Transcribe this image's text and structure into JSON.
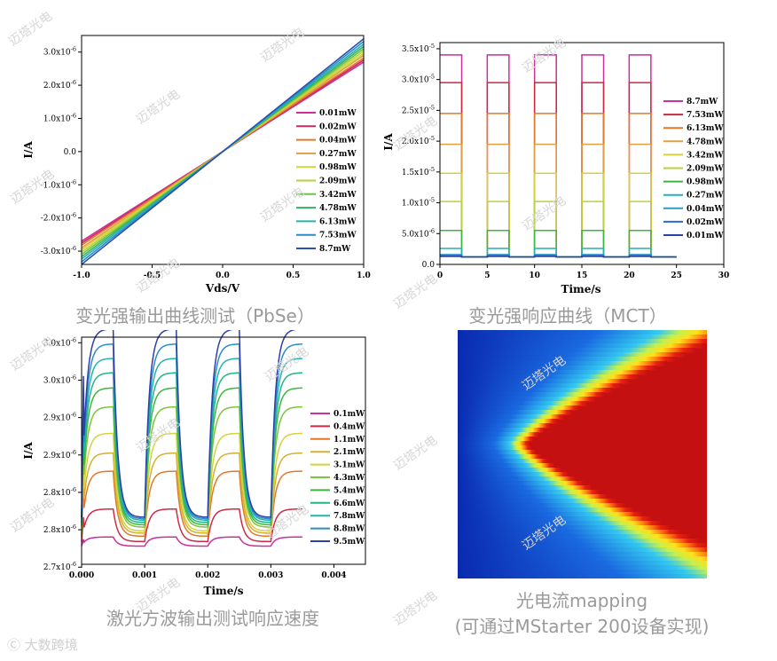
{
  "charts": [
    {
      "type": "line",
      "ylabel": "I/A",
      "xlabel": "Vds/V",
      "xlim": [
        -1.0,
        1.0
      ],
      "ylim": [
        -3.4e-06,
        3.5e-06
      ],
      "xticks": [
        "-1.0",
        "-0.5",
        "0.0",
        "0.5",
        "1.0"
      ],
      "yticks": [
        {
          "base": "3.0x10",
          "exp": "-6",
          "v": 3e-06
        },
        {
          "base": "2.0x10",
          "exp": "-6",
          "v": 2e-06
        },
        {
          "base": "1.0x10",
          "exp": "-6",
          "v": 1e-06
        },
        {
          "base": "0.0",
          "exp": "",
          "v": 0
        },
        {
          "base": "-1.0x10",
          "exp": "-6",
          "v": -1e-06
        },
        {
          "base": "-2.0x10",
          "exp": "-6",
          "v": -2e-06
        },
        {
          "base": "-3.0x10",
          "exp": "-6",
          "v": -3e-06
        }
      ],
      "legend": [
        "0.01mW",
        "0.02mW",
        "0.04mW",
        "0.27mW",
        "0.98mW",
        "2.09mW",
        "3.42mW",
        "4.78mW",
        "6.13mW",
        "7.53mW",
        "8.7mW"
      ],
      "legend_colors": [
        "#cc2f9c",
        "#cc2a63",
        "#e07a28",
        "#e0a042",
        "#d6d23c",
        "#b8d23a",
        "#6cc43e",
        "#34b06a",
        "#23b4b0",
        "#2a8cc8",
        "#2d4fb0"
      ],
      "slopes": [
        2.7e-06,
        2.76e-06,
        2.82e-06,
        2.9e-06,
        2.96e-06,
        3.03e-06,
        3.1e-06,
        3.17e-06,
        3.24e-06,
        3.32e-06,
        3.4e-06
      ],
      "caption": "变光强输出曲线测试（PbSe）"
    },
    {
      "type": "line",
      "ylabel": "I/A",
      "xlabel": "Time/s",
      "xlim": [
        0,
        30
      ],
      "ylim": [
        0,
        3.6e-05
      ],
      "xticks": [
        "0",
        "5",
        "10",
        "15",
        "20",
        "25",
        "30"
      ],
      "yticks": [
        {
          "base": "3.5x10",
          "exp": "-5",
          "v": 3.5e-05
        },
        {
          "base": "3.0x10",
          "exp": "-5",
          "v": 3e-05
        },
        {
          "base": "2.5x10",
          "exp": "-5",
          "v": 2.5e-05
        },
        {
          "base": "2.0x10",
          "exp": "-5",
          "v": 2e-05
        },
        {
          "base": "1.5x10",
          "exp": "-5",
          "v": 1.5e-05
        },
        {
          "base": "1.0x10",
          "exp": "-5",
          "v": 1e-05
        },
        {
          "base": "5.0x10",
          "exp": "-6",
          "v": 5e-06
        },
        {
          "base": "0.0",
          "exp": "",
          "v": 0
        }
      ],
      "legend": [
        "8.7mW",
        "7.53mW",
        "6.13mW",
        "4.78mW",
        "3.42mW",
        "2.09mW",
        "0.98mW",
        "0.27mW",
        "0.04mW",
        "0.02mW",
        "0.01mW"
      ],
      "legend_colors": [
        "#cc2f9c",
        "#cc2a45",
        "#e07a28",
        "#e0a042",
        "#d6d23c",
        "#b8d23a",
        "#3cb83c",
        "#23b4b0",
        "#2a9ad0",
        "#2a6ac8",
        "#2d3fa8"
      ],
      "on_levels": [
        3.4e-05,
        2.95e-05,
        2.45e-05,
        1.95e-05,
        1.48e-05,
        1.02e-05,
        5.5e-06,
        2.6e-06,
        1.6e-06,
        1.4e-06,
        1.3e-06
      ],
      "baseline": 1.2e-06,
      "pulse_on": [
        [
          0,
          2.3
        ],
        [
          5,
          7.3
        ],
        [
          10,
          12.3
        ],
        [
          15,
          17.3
        ],
        [
          20,
          22.3
        ]
      ],
      "t_end": 25,
      "caption": "变光强响应曲线（MCT）"
    },
    {
      "type": "line",
      "ylabel": "I/A",
      "xlabel": "Time/s",
      "xlim": [
        0.0,
        0.0045
      ],
      "ylim": [
        2.7e-06,
        3e-06
      ],
      "xticks": [
        "0.000",
        "0.001",
        "0.002",
        "0.003",
        "0.004"
      ],
      "yticks": [
        {
          "base": "3.0x10",
          "exp": "-6",
          "v": 2.9926e-06
        },
        {
          "base": "3.0x10",
          "exp": "-6",
          "v": 2.9432e-06
        },
        {
          "base": "2.9x10",
          "exp": "-6",
          "v": 2.8938e-06
        },
        {
          "base": "2.9x10",
          "exp": "-6",
          "v": 2.8444e-06
        },
        {
          "base": "2.8x10",
          "exp": "-6",
          "v": 2.795e-06
        },
        {
          "base": "2.8x10",
          "exp": "-6",
          "v": 2.7456e-06
        },
        {
          "base": "2.7x10",
          "exp": "-6",
          "v": 2.6962e-06
        }
      ],
      "legend": [
        "0.1mW",
        "0.4mW",
        "1.1mW",
        "2.1mW",
        "3.1mW",
        "4.3mW",
        "5.4mW",
        "6.6mW",
        "7.8mW",
        "8.8mW",
        "9.5mW"
      ],
      "legend_colors": [
        "#cc2f9c",
        "#cc2a45",
        "#e07a28",
        "#d6b030",
        "#d6d23c",
        "#7cc43a",
        "#3cb83c",
        "#23b48a",
        "#23b4b0",
        "#2a8cc8",
        "#2d3fa8"
      ],
      "high_levels": [
        2.736e-06,
        2.773e-06,
        2.823e-06,
        2.847e-06,
        2.873e-06,
        2.908e-06,
        2.933e-06,
        2.953e-06,
        2.972e-06,
        2.991e-06,
        3.011e-06
      ],
      "low_levels": [
        2.724e-06,
        2.73e-06,
        2.737e-06,
        2.741e-06,
        2.744e-06,
        2.749e-06,
        2.752e-06,
        2.755e-06,
        2.758e-06,
        2.76e-06,
        2.762e-06
      ],
      "period": 0.001,
      "duty": 0.5,
      "t_end": 0.0035,
      "caption": "激光方波输出测试响应速度"
    }
  ],
  "mapping": {
    "caption_line1": "光电流mapping",
    "caption_line2": "(可通过MStarter 200设备实现)",
    "colors": [
      "#0a2ab0",
      "#1a6ae0",
      "#33c8f0",
      "#c8f04a",
      "#ffe01a",
      "#ff7a10",
      "#e82010",
      "#c41010"
    ]
  },
  "watermark": "迈塔光电",
  "corner_brand": "大数跨境"
}
